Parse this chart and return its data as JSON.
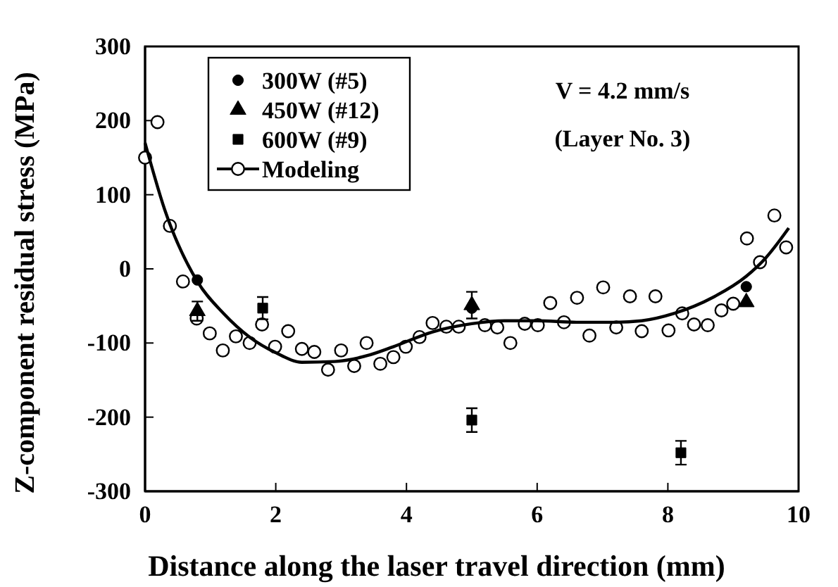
{
  "chart_data": {
    "type": "scatter",
    "xlabel": "Distance along the laser travel direction (mm)",
    "ylabel": "Z-component residual stress (MPa)",
    "annotations": [
      "V = 4.2 mm/s",
      "(Layer No. 3)"
    ],
    "xlim": [
      0,
      10
    ],
    "xticks": [
      0,
      2,
      4,
      6,
      8,
      10
    ],
    "ylim": [
      -300,
      300
    ],
    "yticks": [
      -300,
      -200,
      -100,
      0,
      100,
      200,
      300
    ],
    "grid": false,
    "legend": "top left",
    "series": [
      {
        "name": "300W (#5)",
        "marker": "circle",
        "color": "#000000",
        "x": [
          0.8,
          5.0,
          9.2
        ],
        "values": [
          -15,
          -53,
          -24
        ]
      },
      {
        "name": "450W (#12)",
        "marker": "triangle",
        "color": "#000000",
        "x": [
          0.8,
          5.0,
          9.2
        ],
        "values": [
          -57,
          -49,
          -45
        ],
        "errors": [
          13,
          18,
          null
        ]
      },
      {
        "name": "600W (#9)",
        "marker": "square",
        "color": "#000000",
        "x": [
          1.8,
          5.0,
          8.2
        ],
        "values": [
          -53,
          -204,
          -248
        ],
        "errors": [
          15,
          16,
          16
        ]
      },
      {
        "name": "Modeling",
        "type": "line",
        "marker": "none",
        "line_style": "solid",
        "color": "#000000",
        "x": [
          0,
          0.3,
          0.8,
          1.2,
          1.6,
          2.0,
          2.4,
          2.9,
          3.4,
          3.8,
          4.4,
          5.0,
          5.5,
          6.0,
          6.6,
          7.2,
          7.6,
          8.1,
          8.7,
          9.2,
          9.5,
          9.85
        ],
        "values": [
          170,
          80,
          -17,
          -60,
          -92,
          -113,
          -126,
          -125,
          -117,
          -105,
          -85,
          -74,
          -70,
          -70,
          -72,
          -72,
          -70,
          -60,
          -38,
          -10,
          15,
          55
        ]
      },
      {
        "marker": "circle",
        "color": "#000000",
        "x": [
          0,
          0.19,
          0.38,
          0.58,
          0.79,
          0.99,
          1.19,
          1.39,
          1.6,
          1.79,
          1.99,
          2.19,
          2.4,
          2.59,
          2.8,
          3.0,
          3.2,
          3.39,
          3.6,
          3.8,
          3.99,
          4.2,
          4.4,
          4.61,
          4.8,
          5.2,
          5.39,
          5.59,
          5.81,
          6.01,
          6.2,
          6.41,
          6.61,
          6.8,
          7.01,
          7.21,
          7.42,
          7.6,
          7.81,
          8.01,
          8.22,
          8.4,
          8.61,
          8.82,
          9.0,
          9.21,
          9.41,
          9.63,
          9.81
        ],
        "values": [
          150,
          198,
          58,
          -17,
          -67,
          -87,
          -110,
          -91,
          -100,
          -75,
          -105,
          -84,
          -108,
          -112,
          -136,
          -110,
          -131,
          -100,
          -128,
          -119,
          -105,
          -92,
          -73,
          -78,
          -78,
          -76,
          -79,
          -100,
          -74,
          -76,
          -46,
          -72,
          -39,
          -90,
          -25,
          -79,
          -37,
          -84,
          -37,
          -83,
          -60,
          -75,
          -76,
          -56,
          -47,
          41,
          9,
          72,
          29
        ]
      }
    ]
  }
}
